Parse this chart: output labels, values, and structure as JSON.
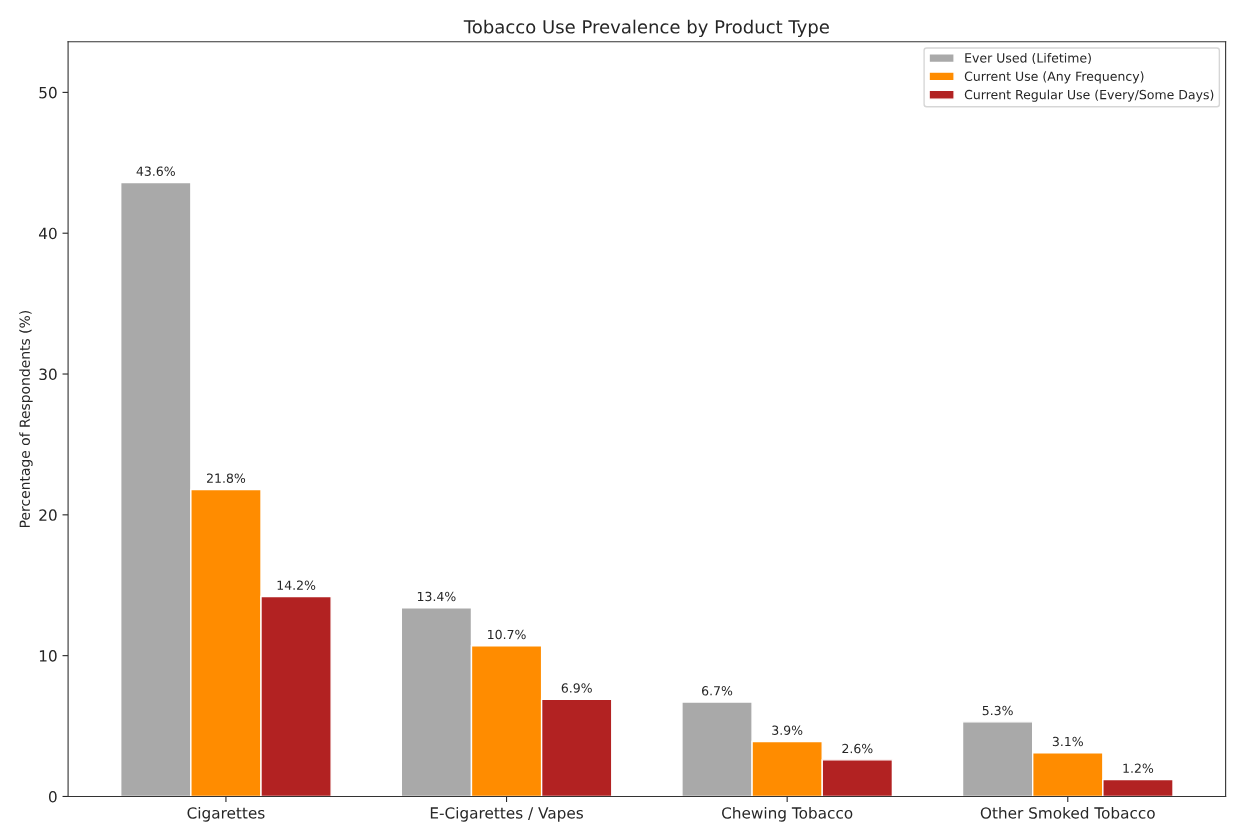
{
  "chart_data": {
    "type": "bar",
    "title": "Tobacco Use Prevalence by Product Type",
    "ylabel": "Percentage of Respondents (%)",
    "categories": [
      "Cigarettes",
      "E-Cigarettes / Vapes",
      "Chewing Tobacco",
      "Other Smoked Tobacco"
    ],
    "series": [
      {
        "name": "Ever Used (Lifetime)",
        "color": "#a9a9a9",
        "values": [
          43.6,
          13.4,
          6.7,
          5.3
        ],
        "value_labels": [
          "43.6%",
          "13.4%",
          "6.7%",
          "5.3%"
        ]
      },
      {
        "name": "Current Use (Any Frequency)",
        "color": "#ff8c00",
        "values": [
          21.8,
          10.7,
          3.9,
          3.1
        ],
        "value_labels": [
          "21.8%",
          "10.7%",
          "3.9%",
          "3.1%"
        ]
      },
      {
        "name": "Current Regular Use (Every/Some Days)",
        "color": "#b22222",
        "values": [
          14.2,
          6.9,
          2.6,
          1.2
        ],
        "value_labels": [
          "14.2%",
          "6.9%",
          "2.6%",
          "1.2%"
        ]
      }
    ],
    "ylim": [
      0,
      53.6
    ],
    "yticks": [
      0,
      10,
      20,
      30,
      40,
      50
    ],
    "legend": "top right",
    "grid": false
  }
}
